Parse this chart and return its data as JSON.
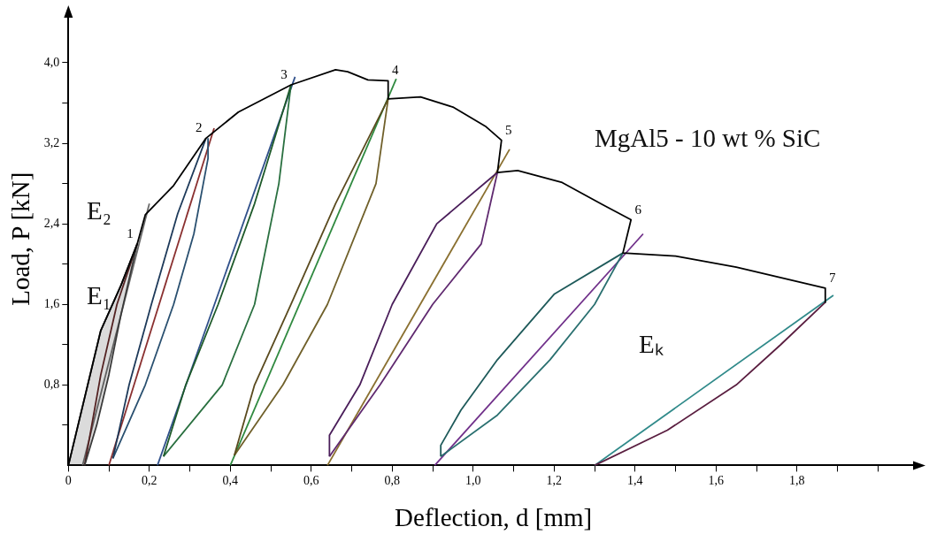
{
  "chart_data": {
    "type": "line",
    "xlabel": "Deflection, d [mm]",
    "ylabel": "Load, P [kN]",
    "xlim": [
      0,
      2.1
    ],
    "ylim": [
      0,
      4.5
    ],
    "xticks": [
      0,
      {
        "value": 0.1,
        "label": null
      },
      {
        "value": 0.2,
        "label": "0,2"
      },
      {
        "value": 0.3,
        "label": null
      },
      {
        "value": 0.4,
        "label": "0,4"
      },
      {
        "value": 0.5,
        "label": null
      },
      {
        "value": 0.6,
        "label": "0,6"
      },
      {
        "value": 0.7,
        "label": null
      },
      {
        "value": 0.8,
        "label": "0,8"
      },
      {
        "value": 0.9,
        "label": null
      },
      {
        "value": 1.0,
        "label": "1,0"
      },
      {
        "value": 1.1,
        "label": null
      },
      {
        "value": 1.2,
        "label": "1,2"
      },
      {
        "value": 1.3,
        "label": null
      },
      {
        "value": 1.4,
        "label": "1,4"
      },
      {
        "value": 1.5,
        "label": null
      },
      {
        "value": 1.6,
        "label": "1,6"
      },
      {
        "value": 1.7,
        "label": null
      },
      {
        "value": 1.8,
        "label": "1,8"
      },
      {
        "value": 1.9,
        "label": null
      },
      {
        "value": 2.0,
        "label": null
      }
    ],
    "yticks": [
      {
        "value": 0.4,
        "label": null
      },
      {
        "value": 0.8,
        "label": "0,8"
      },
      {
        "value": 1.2,
        "label": null
      },
      {
        "value": 1.6,
        "label": "1,6"
      },
      {
        "value": 2.0,
        "label": null
      },
      {
        "value": 2.4,
        "label": "2,4"
      },
      {
        "value": 2.8,
        "label": null
      },
      {
        "value": 3.2,
        "label": "3,2"
      },
      {
        "value": 3.6,
        "label": null
      },
      {
        "value": 4.0,
        "label": "4,0"
      }
    ],
    "marker": "none",
    "line_style": "solid",
    "series": [
      {
        "type": "line",
        "color": "#000000",
        "x": [
          0,
          0.08,
          0.13,
          0.17,
          0.19,
          0.26,
          0.34,
          0.42,
          0.55,
          0.66,
          0.69,
          0.74,
          0.79,
          0.79,
          0.87,
          0.95,
          1.03,
          1.07,
          1.06,
          1.11,
          1.22,
          1.32,
          1.39,
          1.37,
          1.5,
          1.65,
          1.87,
          1.87
        ],
        "values": [
          0,
          1.34,
          1.79,
          2.2,
          2.49,
          2.78,
          3.25,
          3.51,
          3.78,
          3.93,
          3.91,
          3.83,
          3.82,
          3.64,
          3.66,
          3.56,
          3.37,
          3.23,
          2.91,
          2.93,
          2.81,
          2.59,
          2.44,
          2.11,
          2.08,
          1.97,
          1.76,
          1.62
        ]
      },
      {
        "type": "area",
        "color": "#3a3a3a",
        "x": [
          0,
          0.08,
          0.13,
          0.17,
          0.13,
          0.1,
          0.07,
          0.04
        ],
        "values": [
          0,
          1.34,
          1.79,
          2.2,
          1.5,
          0.9,
          0.4,
          0
        ]
      },
      {
        "type": "line",
        "color": "#5a1e1e",
        "x": [
          0.04,
          0.08,
          0.12,
          0.17
        ],
        "values": [
          0,
          0.9,
          1.6,
          2.2
        ]
      },
      {
        "type": "line",
        "color": "#1e3a5a",
        "x": [
          0.11,
          0.15,
          0.205,
          0.27,
          0.34
        ],
        "values": [
          0.07,
          0.8,
          1.6,
          2.5,
          3.25
        ]
      },
      {
        "type": "line",
        "color": "#2a5070",
        "x": [
          0.11,
          0.19,
          0.26,
          0.31,
          0.345,
          0.345
        ],
        "values": [
          0.07,
          0.8,
          1.6,
          2.3,
          3.05,
          3.25
        ]
      },
      {
        "type": "line",
        "color": "#1e5a2a",
        "x": [
          0.235,
          0.29,
          0.37,
          0.46,
          0.55
        ],
        "values": [
          0.09,
          0.8,
          1.6,
          2.6,
          3.78
        ]
      },
      {
        "type": "line",
        "color": "#2a7040",
        "x": [
          0.235,
          0.38,
          0.46,
          0.52,
          0.55
        ],
        "values": [
          0.09,
          0.8,
          1.6,
          2.8,
          3.78
        ]
      },
      {
        "type": "line",
        "color": "#5a4a1e",
        "x": [
          0.41,
          0.46,
          0.55,
          0.66,
          0.79
        ],
        "values": [
          0.1,
          0.8,
          1.6,
          2.6,
          3.64
        ]
      },
      {
        "type": "line",
        "color": "#70602a",
        "x": [
          0.41,
          0.53,
          0.64,
          0.76,
          0.79
        ],
        "values": [
          0.1,
          0.8,
          1.6,
          2.8,
          3.64
        ]
      },
      {
        "type": "line",
        "color": "#4a1e5a",
        "x": [
          0.645,
          0.645,
          0.72,
          0.8,
          0.91,
          1.06
        ],
        "values": [
          0.09,
          0.3,
          0.8,
          1.6,
          2.4,
          2.91
        ]
      },
      {
        "type": "line",
        "color": "#602a70",
        "x": [
          0.645,
          0.77,
          0.9,
          1.02,
          1.06
        ],
        "values": [
          0.09,
          0.8,
          1.6,
          2.2,
          2.91
        ]
      },
      {
        "type": "line",
        "color": "#1e5a5a",
        "x": [
          0.92,
          0.92,
          0.97,
          1.06,
          1.2,
          1.37
        ],
        "values": [
          0.09,
          0.2,
          0.55,
          1.05,
          1.7,
          2.11
        ]
      },
      {
        "type": "line",
        "color": "#2a7070",
        "x": [
          0.92,
          1.06,
          1.19,
          1.3,
          1.37
        ],
        "values": [
          0.09,
          0.5,
          1.05,
          1.6,
          2.11
        ]
      },
      {
        "type": "line",
        "color": "#5a1e40",
        "x": [
          1.3,
          1.48,
          1.65,
          1.76,
          1.87
        ],
        "values": [
          0,
          0.35,
          0.8,
          1.2,
          1.62
        ]
      },
      {
        "type": "line",
        "color": "#6a6a6a",
        "x": [
          0.035,
          0.2
        ],
        "values": [
          0,
          2.6
        ]
      },
      {
        "type": "line",
        "color": "#8a3030",
        "x": [
          0.1,
          0.36
        ],
        "values": [
          0,
          3.35
        ]
      },
      {
        "type": "line",
        "color": "#30508a",
        "x": [
          0.22,
          0.56
        ],
        "values": [
          0,
          3.86
        ]
      },
      {
        "type": "line",
        "color": "#308a40",
        "x": [
          0.4,
          0.81
        ],
        "values": [
          0,
          3.84
        ]
      },
      {
        "type": "line",
        "color": "#8a7030",
        "x": [
          0.64,
          1.09
        ],
        "values": [
          0,
          3.14
        ]
      },
      {
        "type": "line",
        "color": "#70308a",
        "x": [
          0.905,
          1.42
        ],
        "values": [
          0,
          2.3
        ]
      },
      {
        "type": "line",
        "color": "#308a8a",
        "x": [
          1.3,
          1.89
        ],
        "values": [
          0,
          1.69
        ]
      }
    ],
    "annotations": [
      {
        "text": "1",
        "x": 0.17,
        "y": 2.2
      },
      {
        "text": "2",
        "x": 0.34,
        "y": 3.25
      },
      {
        "text": "3",
        "x": 0.55,
        "y": 3.78
      },
      {
        "text": "4",
        "x": 0.79,
        "y": 3.82
      },
      {
        "text": "5",
        "x": 1.07,
        "y": 3.23
      },
      {
        "text": "6",
        "x": 1.39,
        "y": 2.44
      },
      {
        "text": "7",
        "x": 1.87,
        "y": 1.76
      },
      "E₂",
      "E₁",
      "Eₖ",
      "MgAl5 - 10 wt % SiC"
    ]
  }
}
